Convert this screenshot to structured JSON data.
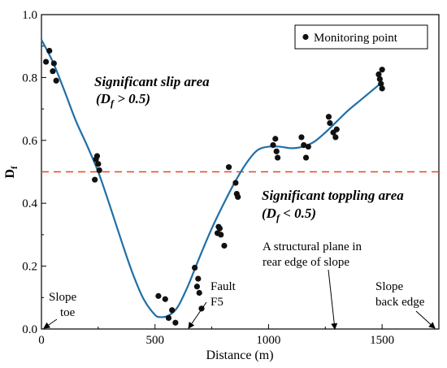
{
  "chart_data": {
    "type": "scatter",
    "ylabel_main": "D",
    "ylabel_sub": "f",
    "xlabel": "Distance (m)",
    "xlim": [
      0,
      1750
    ],
    "ylim": [
      0,
      1.0
    ],
    "x_ticks": [
      0,
      500,
      1000,
      1500
    ],
    "y_ticks": [
      0.0,
      0.2,
      0.4,
      0.6,
      0.8,
      1.0
    ],
    "x_tick_labels": [
      "0",
      "500",
      "1000",
      "1500"
    ],
    "y_tick_labels": [
      "0.0",
      "0.2",
      "0.4",
      "0.6",
      "0.8",
      "1.0"
    ],
    "legend": {
      "label": "Monitoring point",
      "position": "top-right"
    },
    "threshold": {
      "y": 0.5,
      "color": "#e8461e",
      "style": "dashed"
    },
    "series": [
      {
        "name": "Monitoring point",
        "kind": "points",
        "color": "#111111",
        "x": [
          20,
          35,
          50,
          55,
          65,
          235,
          240,
          245,
          250,
          255,
          515,
          545,
          560,
          575,
          590,
          675,
          685,
          690,
          695,
          705,
          775,
          780,
          785,
          790,
          805,
          825,
          855,
          860,
          865,
          1020,
          1030,
          1035,
          1040,
          1145,
          1155,
          1165,
          1175,
          1265,
          1270,
          1285,
          1295,
          1300,
          1485,
          1490,
          1495,
          1500,
          1500
        ],
        "y": [
          0.85,
          0.885,
          0.82,
          0.845,
          0.79,
          0.475,
          0.54,
          0.55,
          0.525,
          0.505,
          0.105,
          0.095,
          0.035,
          0.06,
          0.02,
          0.195,
          0.135,
          0.16,
          0.115,
          0.065,
          0.305,
          0.325,
          0.32,
          0.3,
          0.265,
          0.515,
          0.465,
          0.43,
          0.42,
          0.585,
          0.605,
          0.565,
          0.545,
          0.61,
          0.585,
          0.545,
          0.58,
          0.675,
          0.655,
          0.625,
          0.61,
          0.635,
          0.81,
          0.795,
          0.78,
          0.765,
          0.825
        ]
      },
      {
        "name": "fit",
        "kind": "curve",
        "color": "#1f6fa8",
        "x": [
          0,
          50,
          100,
          150,
          200,
          250,
          300,
          350,
          400,
          450,
          500,
          525,
          550,
          575,
          600,
          625,
          650,
          700,
          750,
          800,
          850,
          900,
          950,
          1000,
          1050,
          1100,
          1150,
          1200,
          1250,
          1300,
          1350,
          1400,
          1450,
          1500
        ],
        "y": [
          0.92,
          0.85,
          0.76,
          0.665,
          0.585,
          0.5,
          0.395,
          0.285,
          0.18,
          0.095,
          0.045,
          0.038,
          0.04,
          0.05,
          0.07,
          0.105,
          0.145,
          0.235,
          0.32,
          0.395,
          0.465,
          0.525,
          0.568,
          0.58,
          0.58,
          0.575,
          0.58,
          0.595,
          0.625,
          0.66,
          0.695,
          0.725,
          0.755,
          0.785
        ]
      }
    ],
    "annotations": {
      "slip_line1": "Significant slip area",
      "slip_line2_pre": "(D",
      "slip_line2_sub": "f",
      "slip_line2_post": " > 0.5)",
      "topple_line1": "Significant toppling area",
      "topple_line2_pre": "(D",
      "topple_line2_sub": "f",
      "topple_line2_post": " < 0.5)",
      "toe_line1": "Slope",
      "toe_line2": "toe",
      "fault_line1": "Fault",
      "fault_line2": "F5",
      "plane_line1": "A structural plane in",
      "plane_line2": "rear edge of slope",
      "back_line1": "Slope",
      "back_line2": "back edge"
    }
  }
}
